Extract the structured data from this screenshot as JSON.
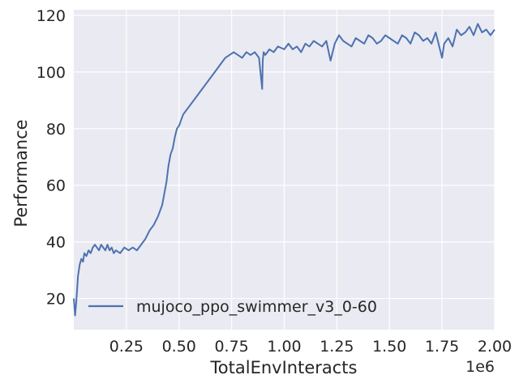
{
  "chart_data": {
    "type": "line",
    "xlabel": "TotalEnvInteracts",
    "ylabel": "Performance",
    "x_offset_label": "1e6",
    "xlim": [
      0,
      2.0
    ],
    "ylim": [
      9,
      122
    ],
    "xticks": [
      "0.25",
      "0.50",
      "0.75",
      "1.00",
      "1.25",
      "1.50",
      "1.75",
      "2.00"
    ],
    "yticks": [
      "20",
      "40",
      "60",
      "80",
      "100",
      "120"
    ],
    "grid": true,
    "legend_position": "lower-left",
    "series": [
      {
        "name": "mujoco_ppo_swimmer_v3_0-60",
        "color": "#4c72b0",
        "x": [
          0.0,
          0.006,
          0.012,
          0.02,
          0.028,
          0.036,
          0.044,
          0.05,
          0.06,
          0.07,
          0.08,
          0.09,
          0.1,
          0.11,
          0.12,
          0.13,
          0.14,
          0.15,
          0.16,
          0.17,
          0.18,
          0.19,
          0.2,
          0.22,
          0.24,
          0.26,
          0.28,
          0.3,
          0.32,
          0.34,
          0.36,
          0.38,
          0.4,
          0.42,
          0.44,
          0.45,
          0.46,
          0.47,
          0.48,
          0.49,
          0.5,
          0.51,
          0.52,
          0.53,
          0.54,
          0.56,
          0.58,
          0.6,
          0.62,
          0.64,
          0.66,
          0.68,
          0.7,
          0.72,
          0.74,
          0.76,
          0.78,
          0.8,
          0.82,
          0.84,
          0.86,
          0.88,
          0.895,
          0.898,
          0.902,
          0.91,
          0.93,
          0.95,
          0.97,
          1.0,
          1.02,
          1.04,
          1.06,
          1.08,
          1.1,
          1.12,
          1.14,
          1.16,
          1.18,
          1.2,
          1.22,
          1.24,
          1.26,
          1.28,
          1.3,
          1.32,
          1.34,
          1.36,
          1.38,
          1.4,
          1.42,
          1.44,
          1.46,
          1.48,
          1.5,
          1.52,
          1.54,
          1.56,
          1.58,
          1.6,
          1.62,
          1.64,
          1.66,
          1.68,
          1.7,
          1.72,
          1.74,
          1.75,
          1.76,
          1.78,
          1.8,
          1.82,
          1.84,
          1.86,
          1.88,
          1.9,
          1.92,
          1.94,
          1.96,
          1.98,
          2.0
        ],
        "y": [
          20,
          14,
          19,
          28,
          32,
          34,
          33,
          36,
          35,
          37,
          36,
          38,
          39,
          38,
          37,
          39,
          38,
          37,
          39,
          37,
          38,
          36,
          37,
          36,
          38,
          37,
          38,
          37,
          39,
          41,
          44,
          46,
          49,
          53,
          61,
          67,
          71,
          73,
          77,
          80,
          81,
          83,
          85,
          86,
          87,
          89,
          91,
          93,
          95,
          97,
          99,
          101,
          103,
          105,
          106,
          107,
          106,
          105,
          107,
          106,
          107,
          105,
          94,
          104,
          107,
          106,
          108,
          107,
          109,
          108,
          110,
          108,
          109,
          107,
          110,
          109,
          111,
          110,
          109,
          111,
          104,
          110,
          113,
          111,
          110,
          109,
          112,
          111,
          110,
          113,
          112,
          110,
          111,
          113,
          112,
          111,
          110,
          113,
          112,
          110,
          114,
          113,
          111,
          112,
          110,
          114,
          108,
          105,
          110,
          112,
          109,
          115,
          113,
          114,
          116,
          113,
          117,
          114,
          115,
          113,
          115
        ]
      }
    ]
  }
}
